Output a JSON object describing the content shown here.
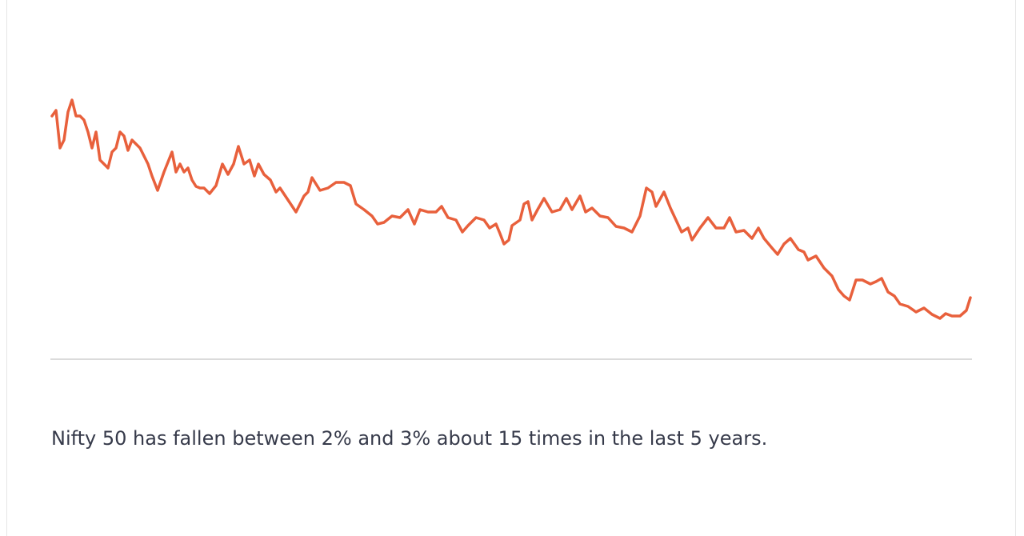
{
  "chart_data": {
    "type": "line",
    "xlim": [
      65,
      1213
    ],
    "ylim": [
      0,
      339
    ],
    "x": [
      65,
      70,
      75,
      80,
      85,
      90,
      95,
      100,
      105,
      110,
      115,
      120,
      125,
      130,
      135,
      140,
      145,
      150,
      155,
      160,
      165,
      170,
      175,
      180,
      185,
      190,
      197,
      205,
      215,
      220,
      225,
      230,
      235,
      240,
      245,
      250,
      255,
      262,
      270,
      278,
      285,
      292,
      298,
      305,
      312,
      318,
      323,
      330,
      338,
      345,
      350,
      360,
      370,
      380,
      385,
      390,
      400,
      410,
      420,
      430,
      438,
      445,
      455,
      465,
      472,
      480,
      490,
      500,
      510,
      518,
      525,
      535,
      545,
      552,
      560,
      570,
      578,
      585,
      595,
      605,
      612,
      620,
      625,
      630,
      636,
      640,
      650,
      655,
      660,
      665,
      672,
      680,
      690,
      700,
      708,
      715,
      725,
      732,
      740,
      750,
      760,
      770,
      780,
      790,
      800,
      808,
      815,
      820,
      830,
      838,
      845,
      852,
      860,
      865,
      875,
      885,
      895,
      905,
      912,
      920,
      930,
      940,
      948,
      955,
      965,
      972,
      980,
      988,
      998,
      1005,
      1010,
      1020,
      1030,
      1040,
      1048,
      1055,
      1062,
      1070,
      1078,
      1088,
      1095,
      1102,
      1110,
      1118,
      1125,
      1135,
      1145,
      1155,
      1165,
      1175,
      1182,
      1190,
      1200,
      1208,
      1213
    ],
    "series": [
      {
        "color": "#e8603c",
        "values": [
          304,
          311,
          264,
          274,
          309,
          324,
          304,
          304,
          299,
          284,
          264,
          284,
          249,
          244,
          239,
          259,
          264,
          284,
          279,
          261,
          274,
          269,
          264,
          254,
          244,
          229,
          211,
          234,
          259,
          234,
          244,
          234,
          239,
          224,
          216,
          214,
          214,
          207,
          217,
          244,
          231,
          244,
          266,
          244,
          249,
          229,
          244,
          231,
          224,
          209,
          214,
          199,
          184,
          204,
          209,
          227,
          211,
          214,
          221,
          221,
          217,
          194,
          187,
          179,
          169,
          171,
          179,
          177,
          187,
          169,
          187,
          184,
          184,
          191,
          177,
          174,
          159,
          167,
          177,
          174,
          164,
          169,
          157,
          144,
          149,
          167,
          174,
          194,
          197,
          174,
          187,
          201,
          184,
          187,
          201,
          187,
          204,
          184,
          189,
          179,
          177,
          166,
          164,
          159,
          179,
          214,
          209,
          191,
          209,
          189,
          174,
          159,
          164,
          149,
          164,
          177,
          164,
          164,
          177,
          159,
          161,
          151,
          164,
          151,
          139,
          131,
          144,
          151,
          137,
          134,
          124,
          129,
          114,
          104,
          87,
          79,
          74,
          99,
          99,
          94,
          97,
          101,
          84,
          79,
          69,
          66,
          59,
          64,
          56,
          51,
          57,
          54,
          54,
          61,
          77
        ]
      }
    ]
  },
  "caption": "Nifty 50 has fallen between 2% and 3% about 15 times in the last 5 years."
}
